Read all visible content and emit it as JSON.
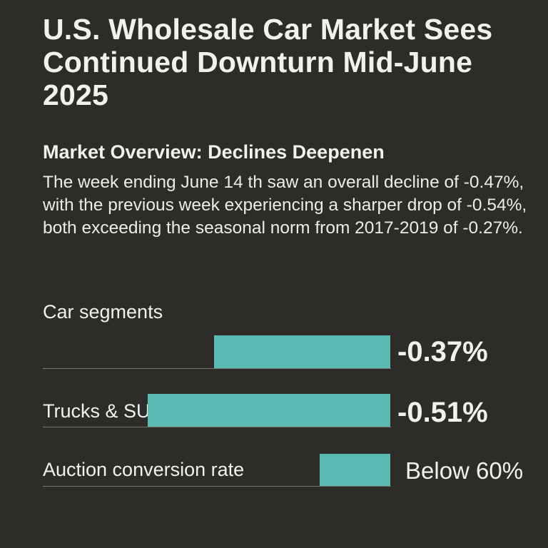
{
  "title": "U.S. Wholesale Car Market Sees Continued Downturn Mid-June 2025",
  "subtitle": "Market Overview: Declines Deepenen",
  "body": "The week ending June 14 th saw an overall decline of -0.47%, with the previous week experiencing a sharper drop of -0.54%, both exceeding the seasonal norm from 2017-2019 of -0.27%.",
  "colors": {
    "background": "#2d2c29",
    "bar": "#5bbab4",
    "text": "#f1f1ee"
  },
  "chart_data": {
    "type": "bar",
    "orientation": "horizontal",
    "title": "Car segments",
    "categories": [
      "",
      "Trucks & SUVs",
      "Auction conversion rate"
    ],
    "values": [
      -0.37,
      -0.51,
      null
    ],
    "value_labels": [
      "-0.37%",
      "-0.51%",
      "Below 60%"
    ],
    "bar_fraction": [
      0.45,
      0.62,
      0.18
    ],
    "grid": false,
    "legend": "none"
  }
}
